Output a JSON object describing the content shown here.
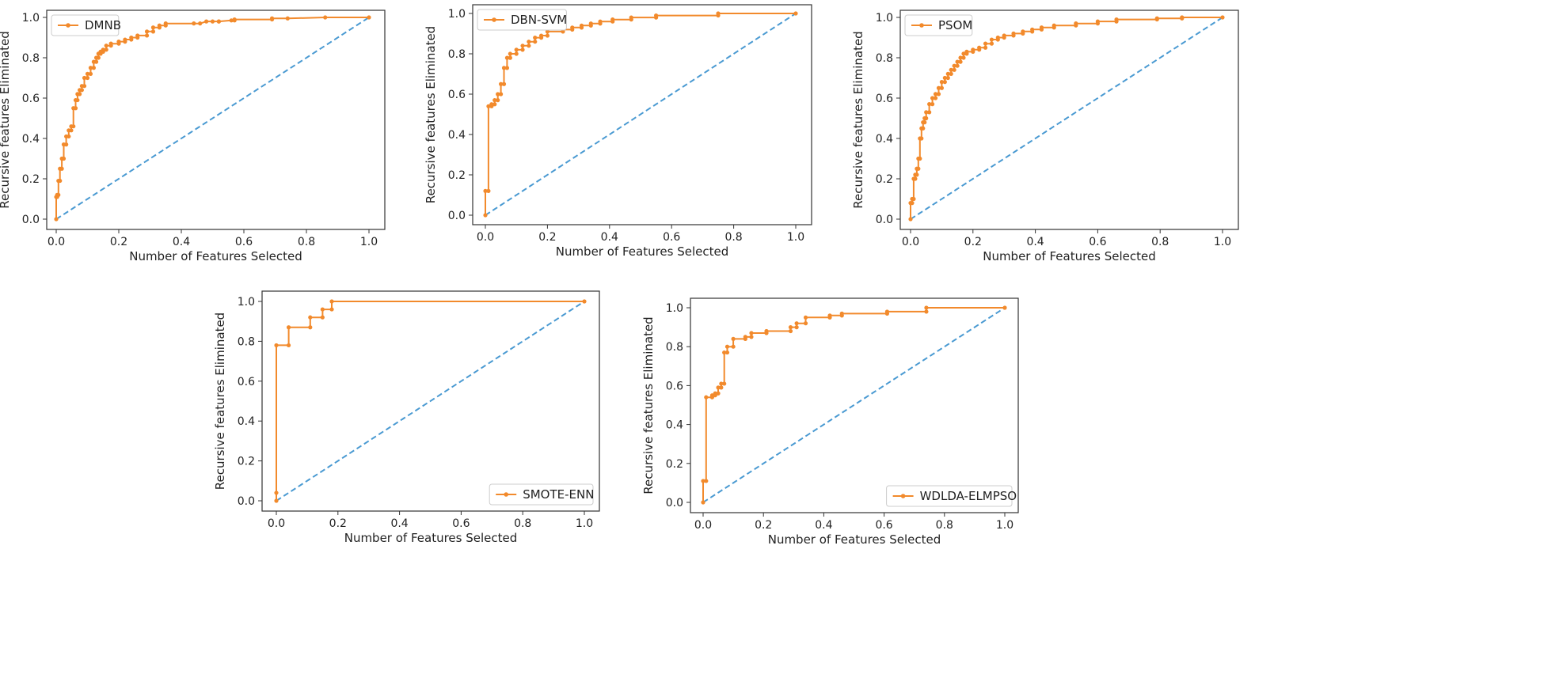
{
  "colors": {
    "curve": "#f28a2c",
    "diagonal": "#4a9ad2",
    "axis": "#333333"
  },
  "chart_data": [
    {
      "type": "line",
      "title": "",
      "legend": "DMNB",
      "legend_position": "upper-left",
      "xlabel": "Number of Features Selected",
      "ylabel": "Recursive features Eliminated",
      "xlim": [
        0,
        1
      ],
      "ylim": [
        0,
        1
      ],
      "xticks": [
        "0.0",
        "0.2",
        "0.4",
        "0.6",
        "0.8",
        "1.0"
      ],
      "yticks": [
        "0.0",
        "0.2",
        "0.4",
        "0.6",
        "0.8",
        "1.0"
      ],
      "series": [
        {
          "name": "DMNB",
          "x": [
            0,
            0,
            0.003,
            0.003,
            0.007,
            0.007,
            0.012,
            0.012,
            0.018,
            0.018,
            0.024,
            0.024,
            0.032,
            0.032,
            0.04,
            0.04,
            0.048,
            0.048,
            0.055,
            0.055,
            0.062,
            0.062,
            0.068,
            0.068,
            0.075,
            0.075,
            0.082,
            0.082,
            0.09,
            0.09,
            0.1,
            0.1,
            0.11,
            0.11,
            0.12,
            0.12,
            0.128,
            0.128,
            0.135,
            0.135,
            0.142,
            0.142,
            0.15,
            0.15,
            0.16,
            0.16,
            0.175,
            0.175,
            0.2,
            0.2,
            0.22,
            0.22,
            0.24,
            0.24,
            0.26,
            0.26,
            0.29,
            0.29,
            0.31,
            0.31,
            0.33,
            0.33,
            0.35,
            0.35,
            0.44,
            0.46,
            0.48,
            0.5,
            0.52,
            0.52,
            0.56,
            0.57,
            0.57,
            0.69,
            0.69,
            0.74,
            0.86,
            1.0
          ],
          "y": [
            0,
            0.11,
            0.11,
            0.12,
            0.12,
            0.19,
            0.19,
            0.25,
            0.25,
            0.3,
            0.3,
            0.37,
            0.37,
            0.41,
            0.41,
            0.44,
            0.44,
            0.46,
            0.46,
            0.55,
            0.55,
            0.59,
            0.59,
            0.62,
            0.62,
            0.64,
            0.64,
            0.66,
            0.66,
            0.7,
            0.7,
            0.72,
            0.72,
            0.75,
            0.75,
            0.78,
            0.78,
            0.8,
            0.8,
            0.82,
            0.82,
            0.83,
            0.83,
            0.84,
            0.84,
            0.86,
            0.86,
            0.87,
            0.87,
            0.88,
            0.88,
            0.89,
            0.89,
            0.9,
            0.9,
            0.91,
            0.91,
            0.93,
            0.93,
            0.95,
            0.95,
            0.96,
            0.96,
            0.97,
            0.97,
            0.97,
            0.98,
            0.98,
            0.98,
            0.98,
            0.985,
            0.985,
            0.99,
            0.99,
            0.995,
            0.995,
            1.0,
            1.0
          ]
        }
      ]
    },
    {
      "type": "line",
      "title": "",
      "legend": "DBN-SVM",
      "legend_position": "upper-left",
      "xlabel": "Number of Features Selected",
      "ylabel": "Recursive features Eliminated",
      "xlim": [
        0,
        1
      ],
      "ylim": [
        0,
        1
      ],
      "xticks": [
        "0.0",
        "0.2",
        "0.4",
        "0.6",
        "0.8",
        "1.0"
      ],
      "yticks": [
        "0.0",
        "0.2",
        "0.4",
        "0.6",
        "0.8",
        "1.0"
      ],
      "series": [
        {
          "name": "DBN-SVM",
          "x": [
            0,
            0,
            0.01,
            0.01,
            0.02,
            0.02,
            0.03,
            0.03,
            0.04,
            0.04,
            0.05,
            0.05,
            0.06,
            0.06,
            0.07,
            0.07,
            0.08,
            0.08,
            0.1,
            0.1,
            0.12,
            0.12,
            0.14,
            0.14,
            0.16,
            0.16,
            0.18,
            0.18,
            0.2,
            0.2,
            0.25,
            0.25,
            0.28,
            0.28,
            0.31,
            0.31,
            0.34,
            0.34,
            0.37,
            0.37,
            0.41,
            0.41,
            0.47,
            0.47,
            0.55,
            0.55,
            0.75,
            0.75,
            1.0
          ],
          "y": [
            0,
            0.12,
            0.12,
            0.54,
            0.54,
            0.55,
            0.55,
            0.57,
            0.57,
            0.6,
            0.6,
            0.65,
            0.65,
            0.73,
            0.73,
            0.78,
            0.78,
            0.8,
            0.8,
            0.82,
            0.82,
            0.84,
            0.84,
            0.86,
            0.86,
            0.88,
            0.88,
            0.89,
            0.89,
            0.91,
            0.91,
            0.92,
            0.92,
            0.93,
            0.93,
            0.94,
            0.94,
            0.95,
            0.95,
            0.96,
            0.96,
            0.97,
            0.97,
            0.98,
            0.98,
            0.99,
            0.99,
            1.0,
            1.0
          ]
        }
      ]
    },
    {
      "type": "line",
      "title": "",
      "legend": "PSOM",
      "legend_position": "upper-left",
      "xlabel": "Number of Features Selected",
      "ylabel": "Recursive features Eliminated",
      "xlim": [
        0,
        1
      ],
      "ylim": [
        0,
        1
      ],
      "xticks": [
        "0.0",
        "0.2",
        "0.4",
        "0.6",
        "0.8",
        "1.0"
      ],
      "yticks": [
        "0.0",
        "0.2",
        "0.4",
        "0.6",
        "0.8",
        "1.0"
      ],
      "series": [
        {
          "name": "PSOM",
          "x": [
            0,
            0,
            0.005,
            0.005,
            0.01,
            0.01,
            0.015,
            0.015,
            0.02,
            0.02,
            0.025,
            0.025,
            0.03,
            0.03,
            0.035,
            0.035,
            0.04,
            0.04,
            0.045,
            0.045,
            0.05,
            0.05,
            0.06,
            0.06,
            0.07,
            0.07,
            0.08,
            0.08,
            0.09,
            0.09,
            0.1,
            0.1,
            0.11,
            0.11,
            0.12,
            0.12,
            0.13,
            0.13,
            0.14,
            0.14,
            0.15,
            0.15,
            0.16,
            0.16,
            0.17,
            0.17,
            0.18,
            0.18,
            0.2,
            0.2,
            0.22,
            0.22,
            0.24,
            0.24,
            0.26,
            0.26,
            0.28,
            0.28,
            0.3,
            0.3,
            0.33,
            0.33,
            0.36,
            0.36,
            0.39,
            0.39,
            0.42,
            0.42,
            0.46,
            0.46,
            0.53,
            0.53,
            0.6,
            0.6,
            0.66,
            0.66,
            0.79,
            0.79,
            0.87,
            0.87,
            1.0
          ],
          "y": [
            0,
            0.08,
            0.08,
            0.1,
            0.1,
            0.2,
            0.2,
            0.22,
            0.22,
            0.25,
            0.25,
            0.3,
            0.3,
            0.4,
            0.4,
            0.45,
            0.45,
            0.48,
            0.48,
            0.5,
            0.5,
            0.53,
            0.53,
            0.57,
            0.57,
            0.6,
            0.6,
            0.62,
            0.62,
            0.65,
            0.65,
            0.68,
            0.68,
            0.7,
            0.7,
            0.72,
            0.72,
            0.74,
            0.74,
            0.76,
            0.76,
            0.78,
            0.78,
            0.8,
            0.8,
            0.82,
            0.82,
            0.83,
            0.83,
            0.84,
            0.84,
            0.85,
            0.85,
            0.87,
            0.87,
            0.89,
            0.89,
            0.9,
            0.9,
            0.91,
            0.91,
            0.92,
            0.92,
            0.93,
            0.93,
            0.94,
            0.94,
            0.95,
            0.95,
            0.96,
            0.96,
            0.97,
            0.97,
            0.98,
            0.98,
            0.99,
            0.99,
            0.995,
            0.995,
            1.0,
            1.0
          ]
        }
      ]
    },
    {
      "type": "line",
      "title": "",
      "legend": "SMOTE-ENN",
      "legend_position": "lower-right",
      "xlabel": "Number of Features Selected",
      "ylabel": "Recursive features Eliminated",
      "xlim": [
        0,
        1
      ],
      "ylim": [
        0,
        1
      ],
      "xticks": [
        "0.0",
        "0.2",
        "0.4",
        "0.6",
        "0.8",
        "1.0"
      ],
      "yticks": [
        "0.0",
        "0.2",
        "0.4",
        "0.6",
        "0.8",
        "1.0"
      ],
      "series": [
        {
          "name": "SMOTE-ENN",
          "x": [
            0,
            0,
            0,
            0.04,
            0.04,
            0.11,
            0.11,
            0.15,
            0.15,
            0.18,
            0.18,
            1.0
          ],
          "y": [
            0,
            0.04,
            0.78,
            0.78,
            0.87,
            0.87,
            0.92,
            0.92,
            0.96,
            0.96,
            1.0,
            1.0
          ]
        }
      ]
    },
    {
      "type": "line",
      "title": "",
      "legend": "WDLDA-ELMPSO",
      "legend_position": "lower-right",
      "xlabel": "Number of Features Selected",
      "ylabel": "Recursive features Eliminated",
      "xlim": [
        0,
        1
      ],
      "ylim": [
        0,
        1
      ],
      "xticks": [
        "0.0",
        "0.2",
        "0.4",
        "0.6",
        "0.8",
        "1.0"
      ],
      "yticks": [
        "0.0",
        "0.2",
        "0.4",
        "0.6",
        "0.8",
        "1.0"
      ],
      "series": [
        {
          "name": "WDLDA-ELMPSO",
          "x": [
            0,
            0,
            0.01,
            0.01,
            0.03,
            0.03,
            0.04,
            0.04,
            0.05,
            0.05,
            0.06,
            0.06,
            0.07,
            0.07,
            0.08,
            0.08,
            0.1,
            0.1,
            0.14,
            0.14,
            0.16,
            0.16,
            0.21,
            0.21,
            0.29,
            0.29,
            0.31,
            0.31,
            0.34,
            0.34,
            0.42,
            0.42,
            0.46,
            0.46,
            0.61,
            0.61,
            0.74,
            0.74,
            1.0
          ],
          "y": [
            0,
            0.11,
            0.11,
            0.54,
            0.54,
            0.55,
            0.55,
            0.56,
            0.56,
            0.59,
            0.59,
            0.61,
            0.61,
            0.77,
            0.77,
            0.8,
            0.8,
            0.84,
            0.84,
            0.85,
            0.85,
            0.87,
            0.87,
            0.88,
            0.88,
            0.9,
            0.9,
            0.92,
            0.92,
            0.95,
            0.95,
            0.96,
            0.96,
            0.97,
            0.97,
            0.98,
            0.98,
            1.0,
            1.0
          ]
        }
      ]
    }
  ]
}
